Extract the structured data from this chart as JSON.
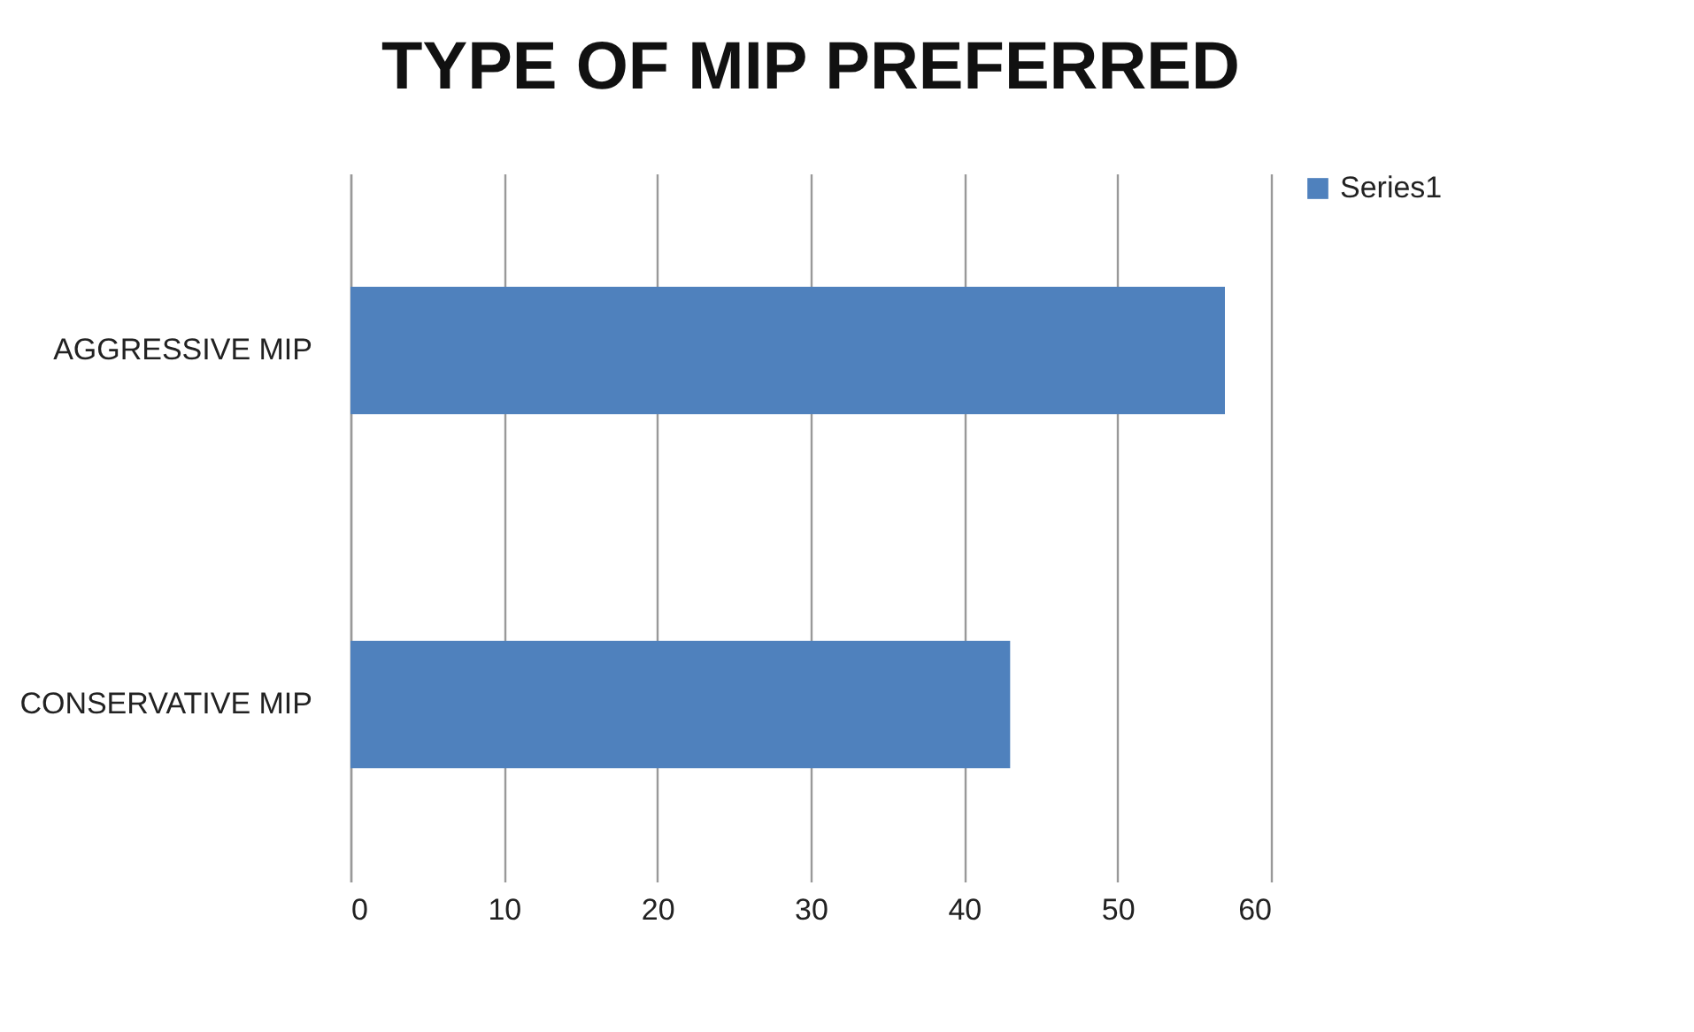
{
  "chart_data": {
    "type": "bar",
    "title": "TYPE OF MIP PREFERRED",
    "orientation": "horizontal",
    "categories": [
      "AGGRESSIVE MIP",
      "CONSERVATIVE MIP"
    ],
    "series": [
      {
        "name": "Series1",
        "color": "#4f81bd",
        "values": [
          57,
          43
        ]
      }
    ],
    "xlim": [
      0,
      60
    ],
    "xticks": [
      0,
      10,
      20,
      30,
      40,
      50,
      60
    ],
    "grid": "x",
    "legend": "right"
  }
}
